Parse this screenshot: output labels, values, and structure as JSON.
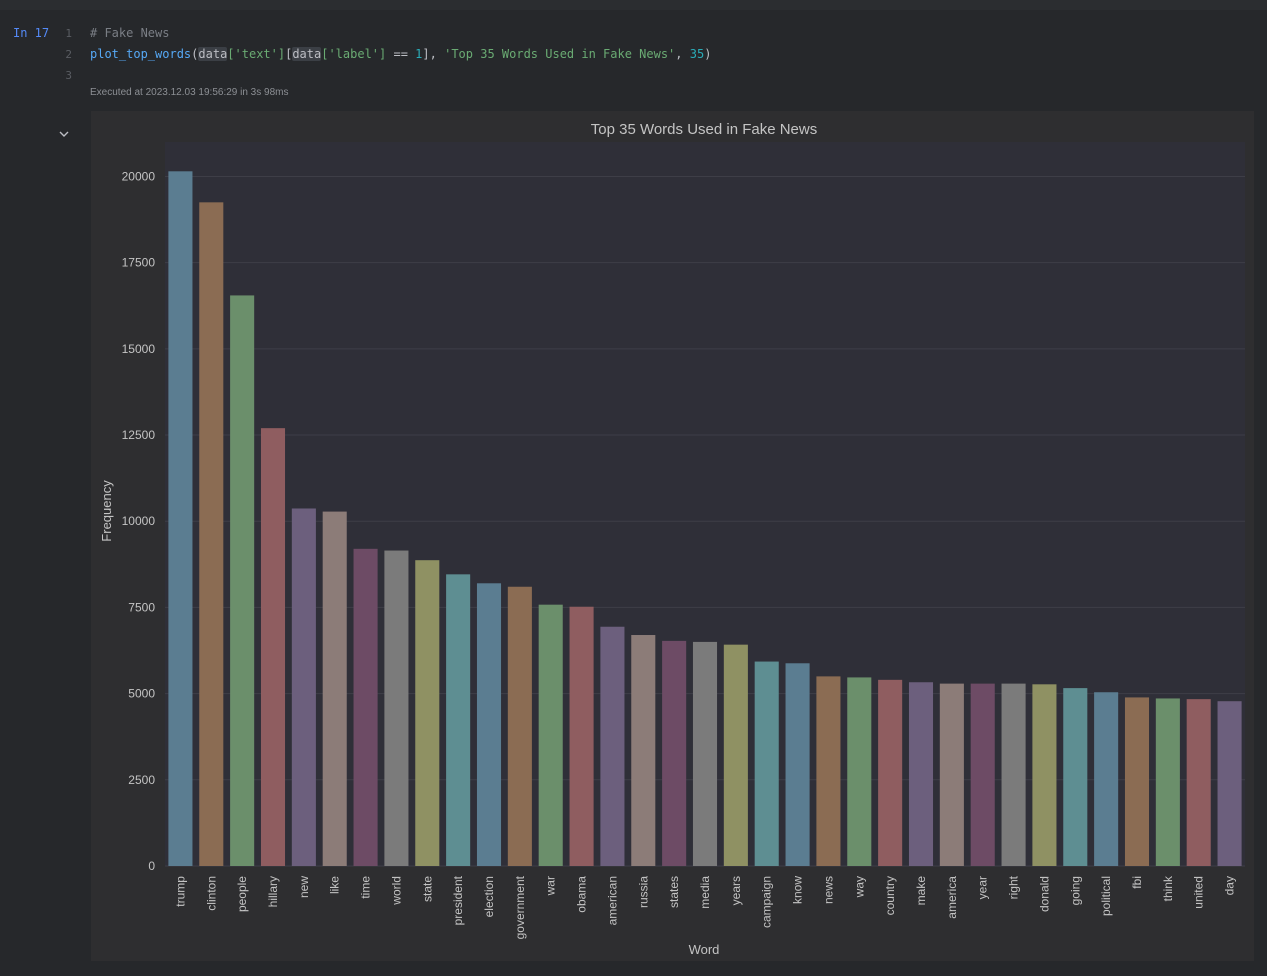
{
  "cell": {
    "execution_label": "In 17",
    "line_numbers": [
      "1",
      "2",
      "3"
    ],
    "code": {
      "comment": "# Fake News",
      "fn": "plot_top_words",
      "p1": "(",
      "var1": "data",
      "s1": "['text']",
      "p2": "[",
      "var2": "data",
      "s2": "['label']",
      "op": " == ",
      "n1": "1",
      "p3": "], ",
      "s3": "'Top 35 Words Used in Fake News'",
      "p4": ", ",
      "n2": "35",
      "p5": ")"
    },
    "status": "Executed at 2023.12.03 19:56:29 in 3s 98ms",
    "collapse_icon": "chevron-down-icon"
  },
  "chart_data": {
    "type": "bar",
    "title": "Top 35 Words Used in Fake News",
    "xlabel": "Word",
    "ylabel": "Frequency",
    "ylim": [
      0,
      21000
    ],
    "yticks": [
      0,
      2500,
      5000,
      7500,
      10000,
      12500,
      15000,
      17500,
      20000
    ],
    "grid": true,
    "categories": [
      "trump",
      "clinton",
      "people",
      "hillary",
      "new",
      "like",
      "time",
      "world",
      "state",
      "president",
      "election",
      "government",
      "war",
      "obama",
      "american",
      "russia",
      "states",
      "media",
      "years",
      "campaign",
      "know",
      "news",
      "way",
      "country",
      "make",
      "america",
      "year",
      "right",
      "donald",
      "going",
      "political",
      "fbi",
      "think",
      "united",
      "day"
    ],
    "values": [
      20150,
      19250,
      16550,
      12700,
      10370,
      10280,
      9200,
      9150,
      8870,
      8460,
      8200,
      8100,
      7580,
      7520,
      6940,
      6700,
      6530,
      6500,
      6420,
      5930,
      5880,
      5500,
      5470,
      5400,
      5330,
      5290,
      5290,
      5290,
      5270,
      5160,
      5040,
      4890,
      4860,
      4840,
      4780
    ],
    "colors": [
      "#5b7d91",
      "#8b6c53",
      "#6b8f6b",
      "#8f5d60",
      "#6c5f7d",
      "#8c7c78",
      "#6d4b65",
      "#7b7b7b",
      "#8f9163",
      "#5e8e92"
    ]
  }
}
